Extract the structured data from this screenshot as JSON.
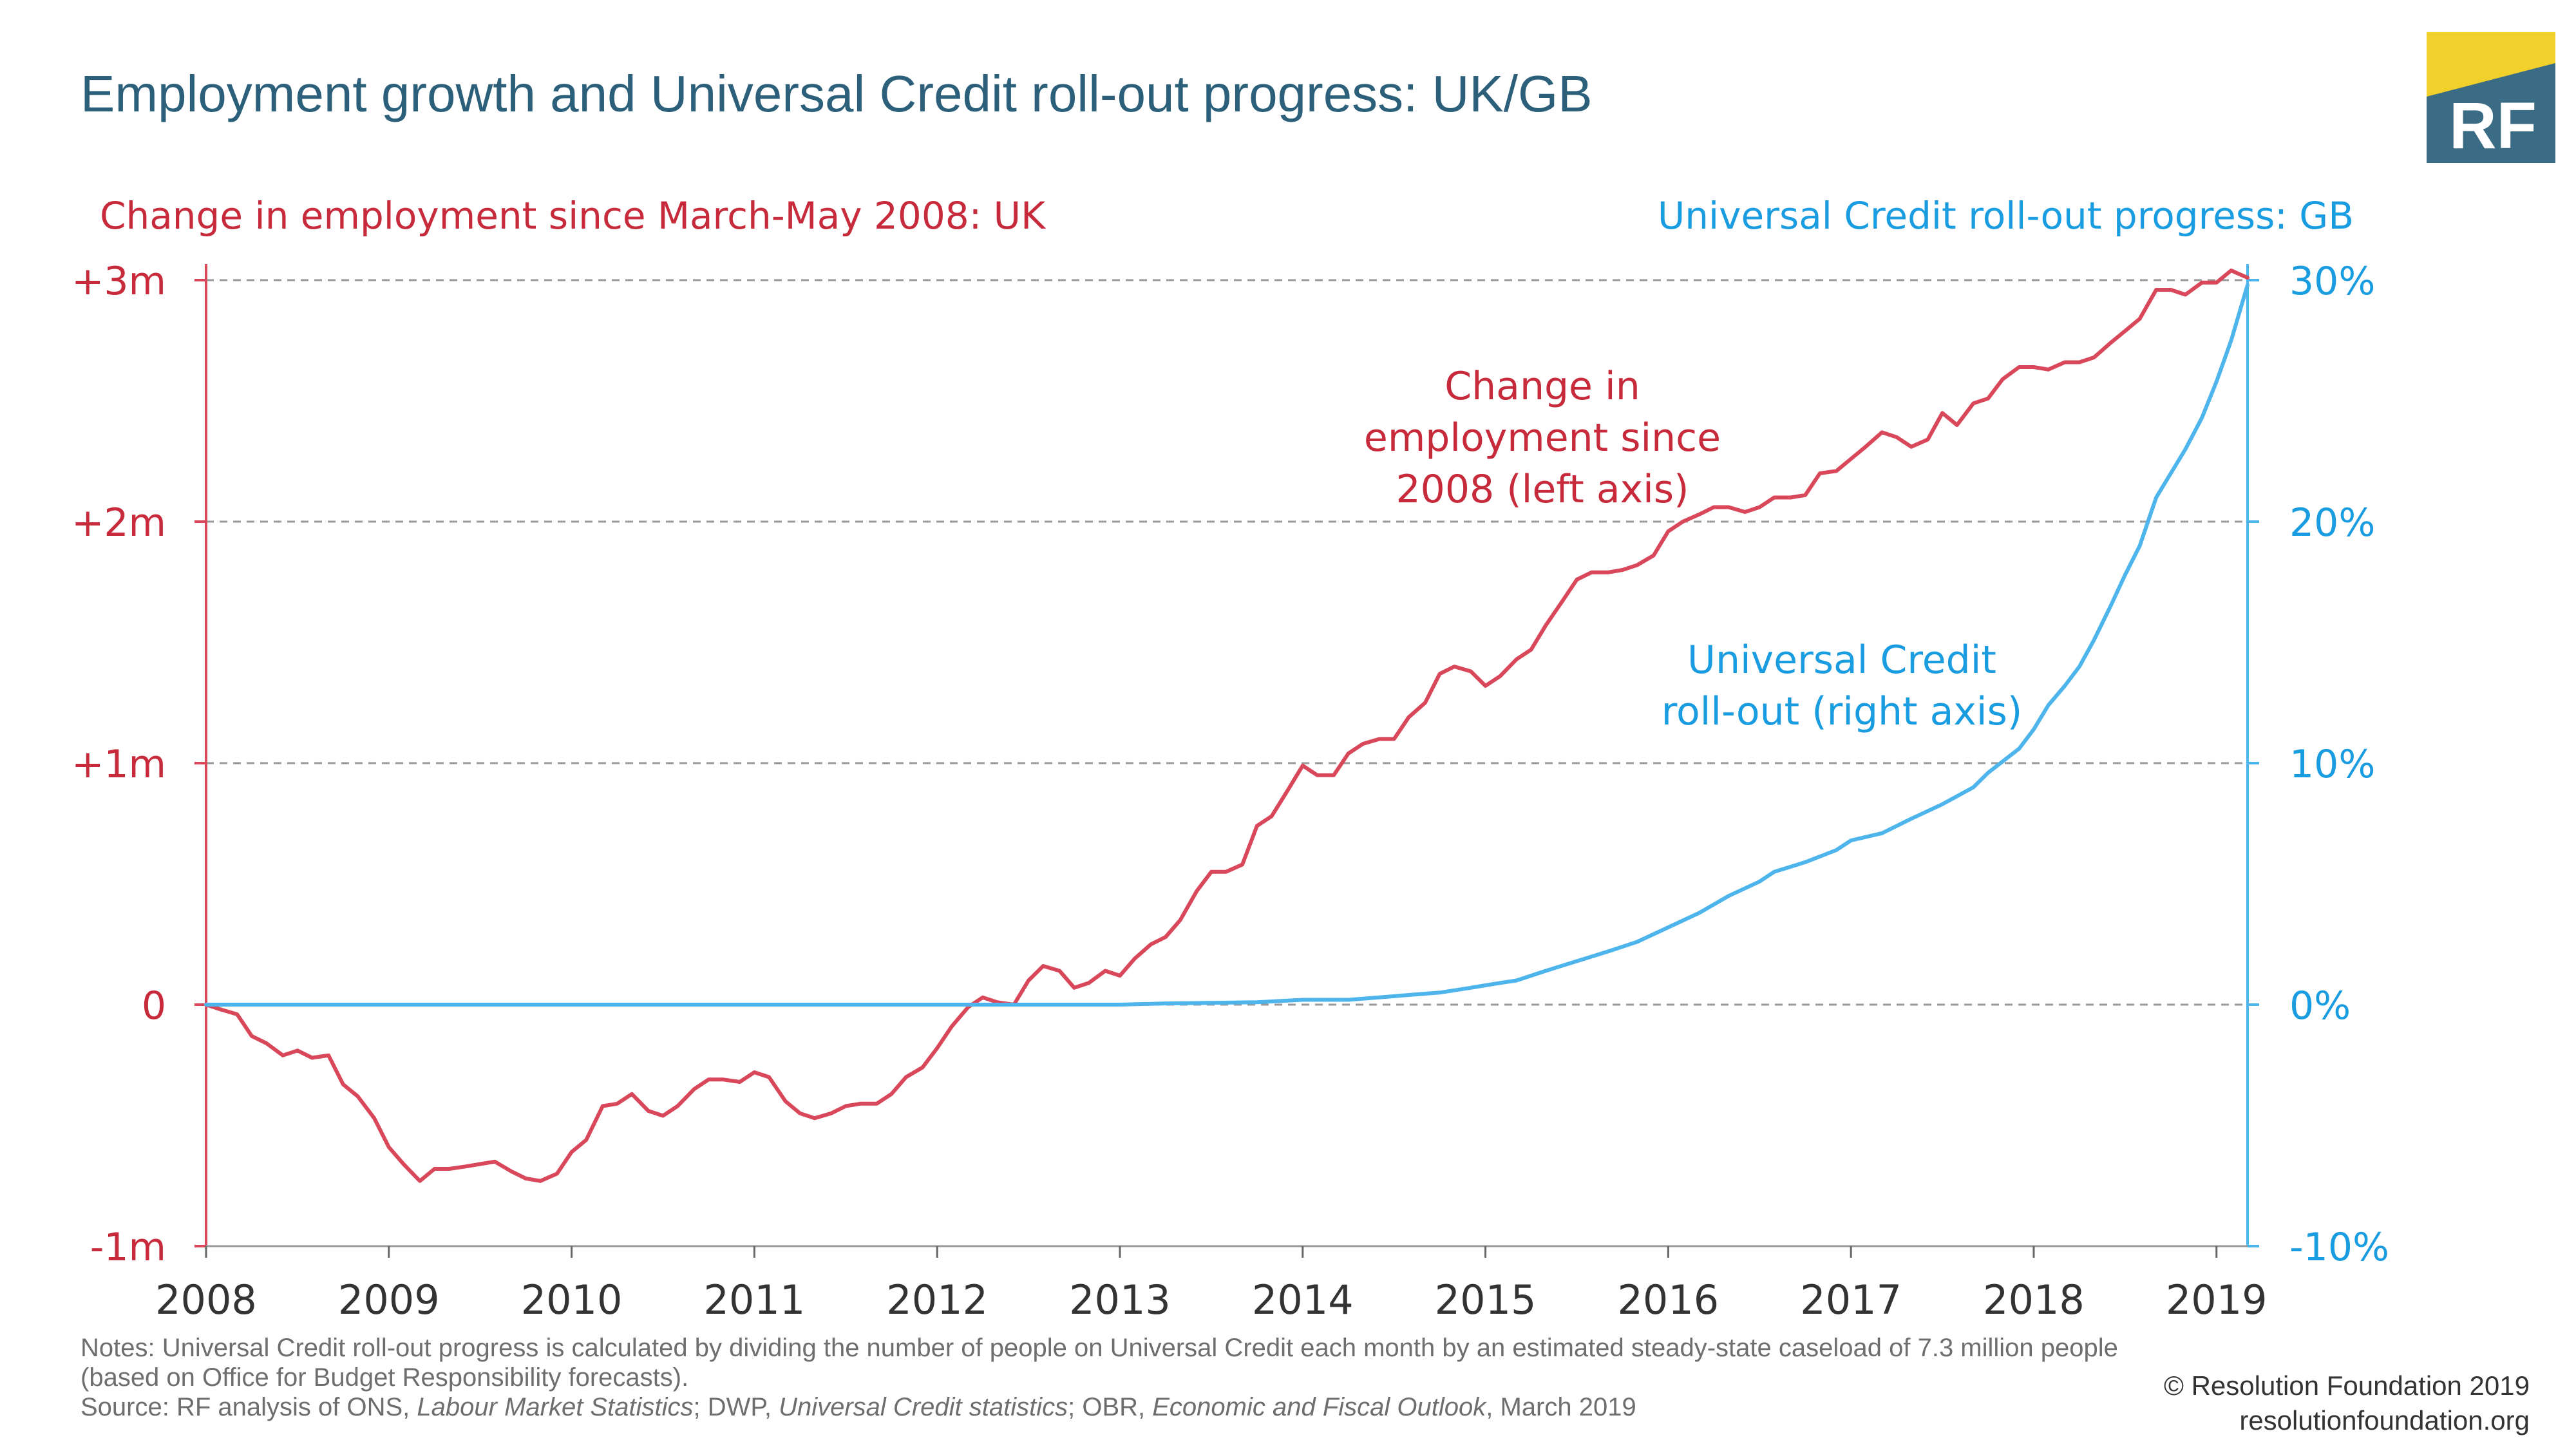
{
  "title": "Employment growth and Universal Credit roll-out progress: UK/GB",
  "logo": {
    "text": "RF",
    "colors": {
      "main": "#3b6c85",
      "accent": "#f2d02b"
    }
  },
  "notes": {
    "line1": "Notes: Universal Credit roll-out progress is calculated by dividing the number of people on Universal Credit each month by an estimated steady-state caseload of 7.3 million people (based on Office for Budget Responsibility forecasts).",
    "source_prefix": "Source: RF analysis of ONS, ",
    "source_lms": "Labour Market Statistics",
    "source_mid1": "; DWP, ",
    "source_ucs": "Universal Credit statistics",
    "source_mid2": "; OBR, ",
    "source_efo": "Economic and Fiscal Outlook",
    "source_suffix": ", March 2019"
  },
  "credit": {
    "copyright": "© Resolution Foundation 2019",
    "url": "resolutionfoundation.org"
  },
  "chart_data": {
    "type": "line",
    "colors": {
      "employment": "#d8475a",
      "employment_text": "#c72a3a",
      "uc": "#4db4ec",
      "uc_text": "#1a9de0",
      "grid": "#999999"
    },
    "left_axis_label": "Change in employment since March-May 2008: UK",
    "right_axis_label": "Universal Credit roll-out progress: GB",
    "left_ylim": [
      -1,
      3
    ],
    "left_ticks": [
      {
        "v": 3,
        "label": "+3m"
      },
      {
        "v": 2,
        "label": "+2m"
      },
      {
        "v": 1,
        "label": "+1m"
      },
      {
        "v": 0,
        "label": "0"
      },
      {
        "v": -1,
        "label": "-1m"
      }
    ],
    "right_ylim": [
      -10,
      30
    ],
    "right_ticks": [
      {
        "v": 30,
        "label": "30%"
      },
      {
        "v": 20,
        "label": "20%"
      },
      {
        "v": 10,
        "label": "10%"
      },
      {
        "v": 0,
        "label": "0%"
      },
      {
        "v": -10,
        "label": "-10%"
      }
    ],
    "xlim": [
      2008.0,
      2019.17
    ],
    "x_ticks": [
      2008,
      2009,
      2010,
      2011,
      2012,
      2013,
      2014,
      2015,
      2016,
      2017,
      2018,
      2019
    ],
    "grid": true,
    "annotations": {
      "employment": [
        "Change in",
        "employment since",
        "2008 (left axis)"
      ],
      "uc": [
        "Universal Credit",
        "roll-out (right axis)"
      ]
    },
    "series": [
      {
        "name": "Change in employment since 2008 (left axis)",
        "axis": "left",
        "points": [
          [
            2008.0,
            0
          ],
          [
            2008.08,
            -0.02
          ],
          [
            2008.17,
            -0.04
          ],
          [
            2008.25,
            -0.13
          ],
          [
            2008.33,
            -0.16
          ],
          [
            2008.42,
            -0.21
          ],
          [
            2008.5,
            -0.19
          ],
          [
            2008.58,
            -0.22
          ],
          [
            2008.67,
            -0.21
          ],
          [
            2008.75,
            -0.33
          ],
          [
            2008.83,
            -0.38
          ],
          [
            2008.92,
            -0.47
          ],
          [
            2009.0,
            -0.59
          ],
          [
            2009.08,
            -0.66
          ],
          [
            2009.17,
            -0.73
          ],
          [
            2009.25,
            -0.68
          ],
          [
            2009.33,
            -0.68
          ],
          [
            2009.42,
            -0.67
          ],
          [
            2009.5,
            -0.66
          ],
          [
            2009.58,
            -0.65
          ],
          [
            2009.67,
            -0.69
          ],
          [
            2009.75,
            -0.72
          ],
          [
            2009.83,
            -0.73
          ],
          [
            2009.92,
            -0.7
          ],
          [
            2010.0,
            -0.61
          ],
          [
            2010.08,
            -0.56
          ],
          [
            2010.17,
            -0.42
          ],
          [
            2010.25,
            -0.41
          ],
          [
            2010.33,
            -0.37
          ],
          [
            2010.42,
            -0.44
          ],
          [
            2010.5,
            -0.46
          ],
          [
            2010.58,
            -0.42
          ],
          [
            2010.67,
            -0.35
          ],
          [
            2010.75,
            -0.31
          ],
          [
            2010.83,
            -0.31
          ],
          [
            2010.92,
            -0.32
          ],
          [
            2011.0,
            -0.28
          ],
          [
            2011.08,
            -0.3
          ],
          [
            2011.17,
            -0.4
          ],
          [
            2011.25,
            -0.45
          ],
          [
            2011.33,
            -0.47
          ],
          [
            2011.42,
            -0.45
          ],
          [
            2011.5,
            -0.42
          ],
          [
            2011.58,
            -0.41
          ],
          [
            2011.67,
            -0.41
          ],
          [
            2011.75,
            -0.37
          ],
          [
            2011.83,
            -0.3
          ],
          [
            2011.92,
            -0.26
          ],
          [
            2012.0,
            -0.18
          ],
          [
            2012.08,
            -0.09
          ],
          [
            2012.17,
            -0.01
          ],
          [
            2012.25,
            0.03
          ],
          [
            2012.33,
            0.01
          ],
          [
            2012.42,
            0.0
          ],
          [
            2012.5,
            0.1
          ],
          [
            2012.58,
            0.16
          ],
          [
            2012.67,
            0.14
          ],
          [
            2012.75,
            0.07
          ],
          [
            2012.83,
            0.09
          ],
          [
            2012.92,
            0.14
          ],
          [
            2013.0,
            0.12
          ],
          [
            2013.08,
            0.19
          ],
          [
            2013.17,
            0.25
          ],
          [
            2013.25,
            0.28
          ],
          [
            2013.33,
            0.35
          ],
          [
            2013.42,
            0.47
          ],
          [
            2013.5,
            0.55
          ],
          [
            2013.58,
            0.55
          ],
          [
            2013.67,
            0.58
          ],
          [
            2013.75,
            0.74
          ],
          [
            2013.83,
            0.78
          ],
          [
            2013.92,
            0.89
          ],
          [
            2014.0,
            0.99
          ],
          [
            2014.08,
            0.95
          ],
          [
            2014.17,
            0.95
          ],
          [
            2014.25,
            1.04
          ],
          [
            2014.33,
            1.08
          ],
          [
            2014.42,
            1.1
          ],
          [
            2014.5,
            1.1
          ],
          [
            2014.58,
            1.19
          ],
          [
            2014.67,
            1.25
          ],
          [
            2014.75,
            1.37
          ],
          [
            2014.83,
            1.4
          ],
          [
            2014.92,
            1.38
          ],
          [
            2015.0,
            1.32
          ],
          [
            2015.08,
            1.36
          ],
          [
            2015.17,
            1.43
          ],
          [
            2015.25,
            1.47
          ],
          [
            2015.33,
            1.57
          ],
          [
            2015.42,
            1.67
          ],
          [
            2015.5,
            1.76
          ],
          [
            2015.58,
            1.79
          ],
          [
            2015.67,
            1.79
          ],
          [
            2015.75,
            1.8
          ],
          [
            2015.83,
            1.82
          ],
          [
            2015.92,
            1.86
          ],
          [
            2016.0,
            1.96
          ],
          [
            2016.08,
            2.0
          ],
          [
            2016.17,
            2.03
          ],
          [
            2016.25,
            2.06
          ],
          [
            2016.33,
            2.06
          ],
          [
            2016.42,
            2.04
          ],
          [
            2016.5,
            2.06
          ],
          [
            2016.58,
            2.1
          ],
          [
            2016.67,
            2.1
          ],
          [
            2016.75,
            2.11
          ],
          [
            2016.83,
            2.2
          ],
          [
            2016.92,
            2.21
          ],
          [
            2017.0,
            2.26
          ],
          [
            2017.08,
            2.31
          ],
          [
            2017.17,
            2.37
          ],
          [
            2017.25,
            2.35
          ],
          [
            2017.33,
            2.31
          ],
          [
            2017.42,
            2.34
          ],
          [
            2017.5,
            2.45
          ],
          [
            2017.58,
            2.4
          ],
          [
            2017.67,
            2.49
          ],
          [
            2017.75,
            2.51
          ],
          [
            2017.83,
            2.59
          ],
          [
            2017.92,
            2.64
          ],
          [
            2018.0,
            2.64
          ],
          [
            2018.08,
            2.63
          ],
          [
            2018.17,
            2.66
          ],
          [
            2018.25,
            2.66
          ],
          [
            2018.33,
            2.68
          ],
          [
            2018.42,
            2.74
          ],
          [
            2018.5,
            2.79
          ],
          [
            2018.58,
            2.84
          ],
          [
            2018.67,
            2.96
          ],
          [
            2018.75,
            2.96
          ],
          [
            2018.83,
            2.94
          ],
          [
            2018.92,
            2.99
          ],
          [
            2019.0,
            2.99
          ],
          [
            2019.08,
            3.04
          ],
          [
            2019.17,
            3.01
          ]
        ]
      },
      {
        "name": "Universal Credit roll-out (right axis)",
        "axis": "right",
        "points": [
          [
            2008.0,
            0
          ],
          [
            2013.0,
            0
          ],
          [
            2013.25,
            0.05
          ],
          [
            2013.75,
            0.1
          ],
          [
            2014.0,
            0.2
          ],
          [
            2014.25,
            0.2
          ],
          [
            2014.42,
            0.3
          ],
          [
            2014.58,
            0.4
          ],
          [
            2014.75,
            0.5
          ],
          [
            2014.92,
            0.7
          ],
          [
            2015.0,
            0.8
          ],
          [
            2015.08,
            0.9
          ],
          [
            2015.17,
            1.0
          ],
          [
            2015.25,
            1.2
          ],
          [
            2015.33,
            1.4
          ],
          [
            2015.5,
            1.8
          ],
          [
            2015.67,
            2.2
          ],
          [
            2015.83,
            2.6
          ],
          [
            2016.0,
            3.2
          ],
          [
            2016.17,
            3.8
          ],
          [
            2016.33,
            4.5
          ],
          [
            2016.5,
            5.1
          ],
          [
            2016.58,
            5.5
          ],
          [
            2016.75,
            5.9
          ],
          [
            2016.92,
            6.4
          ],
          [
            2017.0,
            6.8
          ],
          [
            2017.17,
            7.1
          ],
          [
            2017.33,
            7.7
          ],
          [
            2017.5,
            8.3
          ],
          [
            2017.67,
            9.0
          ],
          [
            2017.75,
            9.6
          ],
          [
            2017.92,
            10.6
          ],
          [
            2018.0,
            11.4
          ],
          [
            2018.08,
            12.4
          ],
          [
            2018.17,
            13.2
          ],
          [
            2018.25,
            14.0
          ],
          [
            2018.33,
            15.1
          ],
          [
            2018.42,
            16.5
          ],
          [
            2018.5,
            17.8
          ],
          [
            2018.58,
            19.0
          ],
          [
            2018.67,
            21.0
          ],
          [
            2018.75,
            22.0
          ],
          [
            2018.83,
            23.0
          ],
          [
            2018.92,
            24.3
          ],
          [
            2019.0,
            25.8
          ],
          [
            2019.08,
            27.5
          ],
          [
            2019.17,
            29.8
          ]
        ]
      }
    ]
  }
}
